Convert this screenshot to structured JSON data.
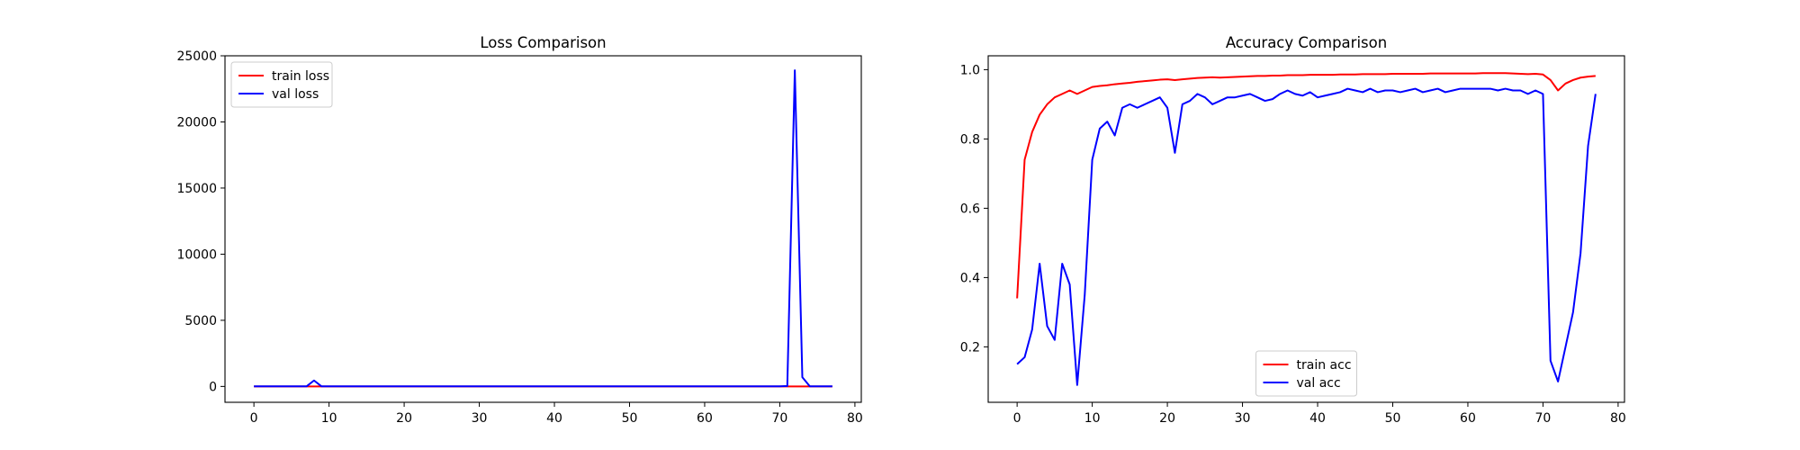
{
  "chart_data": [
    {
      "type": "line",
      "title": "Loss Comparison",
      "xlabel": "",
      "ylabel": "",
      "xlim": [
        -3.85,
        80.85
      ],
      "ylim": [
        -1200,
        25000
      ],
      "xticks": [
        0,
        10,
        20,
        30,
        40,
        50,
        60,
        70,
        80
      ],
      "yticks": [
        0,
        5000,
        10000,
        15000,
        20000,
        25000
      ],
      "grid": false,
      "legend_position": "upper-left",
      "x": [
        0,
        1,
        2,
        3,
        4,
        5,
        6,
        7,
        8,
        9,
        10,
        11,
        12,
        13,
        14,
        15,
        16,
        17,
        18,
        19,
        20,
        21,
        22,
        23,
        24,
        25,
        26,
        27,
        28,
        29,
        30,
        31,
        32,
        33,
        34,
        35,
        36,
        37,
        38,
        39,
        40,
        41,
        42,
        43,
        44,
        45,
        46,
        47,
        48,
        49,
        50,
        51,
        52,
        53,
        54,
        55,
        56,
        57,
        58,
        59,
        60,
        61,
        62,
        63,
        64,
        65,
        66,
        67,
        68,
        69,
        70,
        71,
        72,
        73,
        74,
        75,
        76,
        77
      ],
      "series": [
        {
          "name": "train loss",
          "color": "#ff0000",
          "values": [
            2,
            1,
            1,
            1,
            1,
            1,
            1,
            1,
            1,
            1,
            1,
            1,
            1,
            1,
            1,
            1,
            1,
            1,
            1,
            1,
            1,
            1,
            1,
            1,
            1,
            1,
            1,
            1,
            1,
            1,
            1,
            1,
            1,
            1,
            1,
            1,
            1,
            1,
            1,
            1,
            1,
            1,
            1,
            1,
            1,
            1,
            1,
            1,
            1,
            1,
            1,
            1,
            1,
            1,
            1,
            1,
            1,
            1,
            1,
            1,
            1,
            1,
            1,
            1,
            1,
            1,
            1,
            1,
            1,
            1,
            1,
            1,
            1,
            1,
            1,
            1,
            1,
            1
          ]
        },
        {
          "name": "val loss",
          "color": "#0000ff",
          "values": [
            5,
            5,
            5,
            5,
            5,
            5,
            5,
            5,
            450,
            5,
            5,
            5,
            5,
            5,
            5,
            5,
            5,
            5,
            5,
            5,
            5,
            5,
            5,
            5,
            5,
            5,
            5,
            5,
            5,
            5,
            5,
            5,
            5,
            5,
            5,
            5,
            5,
            5,
            5,
            5,
            5,
            5,
            5,
            5,
            5,
            5,
            5,
            5,
            5,
            5,
            5,
            5,
            5,
            5,
            5,
            5,
            5,
            5,
            5,
            5,
            5,
            5,
            5,
            5,
            5,
            5,
            5,
            5,
            5,
            5,
            5,
            30,
            23900,
            700,
            5,
            5,
            5,
            5
          ]
        }
      ]
    },
    {
      "type": "line",
      "title": "Accuracy Comparison",
      "xlabel": "",
      "ylabel": "",
      "xlim": [
        -3.85,
        80.85
      ],
      "ylim": [
        0.04,
        1.04
      ],
      "xticks": [
        0,
        10,
        20,
        30,
        40,
        50,
        60,
        70,
        80
      ],
      "yticks": [
        0.2,
        0.4,
        0.6,
        0.8,
        1.0
      ],
      "grid": false,
      "legend_position": "lower-center",
      "x": [
        0,
        1,
        2,
        3,
        4,
        5,
        6,
        7,
        8,
        9,
        10,
        11,
        12,
        13,
        14,
        15,
        16,
        17,
        18,
        19,
        20,
        21,
        22,
        23,
        24,
        25,
        26,
        27,
        28,
        29,
        30,
        31,
        32,
        33,
        34,
        35,
        36,
        37,
        38,
        39,
        40,
        41,
        42,
        43,
        44,
        45,
        46,
        47,
        48,
        49,
        50,
        51,
        52,
        53,
        54,
        55,
        56,
        57,
        58,
        59,
        60,
        61,
        62,
        63,
        64,
        65,
        66,
        67,
        68,
        69,
        70,
        71,
        72,
        73,
        74,
        75,
        76,
        77
      ],
      "series": [
        {
          "name": "train acc",
          "color": "#ff0000",
          "values": [
            0.34,
            0.74,
            0.82,
            0.87,
            0.9,
            0.92,
            0.93,
            0.94,
            0.93,
            0.94,
            0.95,
            0.953,
            0.955,
            0.958,
            0.96,
            0.962,
            0.965,
            0.967,
            0.969,
            0.971,
            0.972,
            0.97,
            0.972,
            0.974,
            0.976,
            0.977,
            0.978,
            0.977,
            0.978,
            0.979,
            0.98,
            0.981,
            0.982,
            0.982,
            0.983,
            0.983,
            0.984,
            0.984,
            0.984,
            0.985,
            0.985,
            0.985,
            0.985,
            0.986,
            0.986,
            0.986,
            0.987,
            0.987,
            0.987,
            0.987,
            0.988,
            0.988,
            0.988,
            0.988,
            0.988,
            0.989,
            0.989,
            0.989,
            0.989,
            0.989,
            0.989,
            0.989,
            0.99,
            0.99,
            0.99,
            0.99,
            0.989,
            0.988,
            0.987,
            0.988,
            0.986,
            0.97,
            0.94,
            0.96,
            0.97,
            0.977,
            0.98,
            0.982
          ]
        },
        {
          "name": "val acc",
          "color": "#0000ff",
          "values": [
            0.15,
            0.17,
            0.25,
            0.44,
            0.26,
            0.22,
            0.44,
            0.38,
            0.09,
            0.35,
            0.74,
            0.83,
            0.85,
            0.81,
            0.89,
            0.9,
            0.89,
            0.9,
            0.91,
            0.92,
            0.89,
            0.76,
            0.9,
            0.91,
            0.93,
            0.92,
            0.9,
            0.91,
            0.92,
            0.92,
            0.925,
            0.93,
            0.92,
            0.91,
            0.915,
            0.93,
            0.94,
            0.93,
            0.925,
            0.935,
            0.92,
            0.925,
            0.93,
            0.935,
            0.945,
            0.94,
            0.935,
            0.945,
            0.935,
            0.94,
            0.94,
            0.935,
            0.94,
            0.945,
            0.935,
            0.94,
            0.945,
            0.935,
            0.94,
            0.945,
            0.945,
            0.945,
            0.945,
            0.945,
            0.94,
            0.945,
            0.94,
            0.94,
            0.93,
            0.94,
            0.93,
            0.16,
            0.1,
            0.2,
            0.3,
            0.47,
            0.78,
            0.93
          ]
        }
      ]
    }
  ]
}
